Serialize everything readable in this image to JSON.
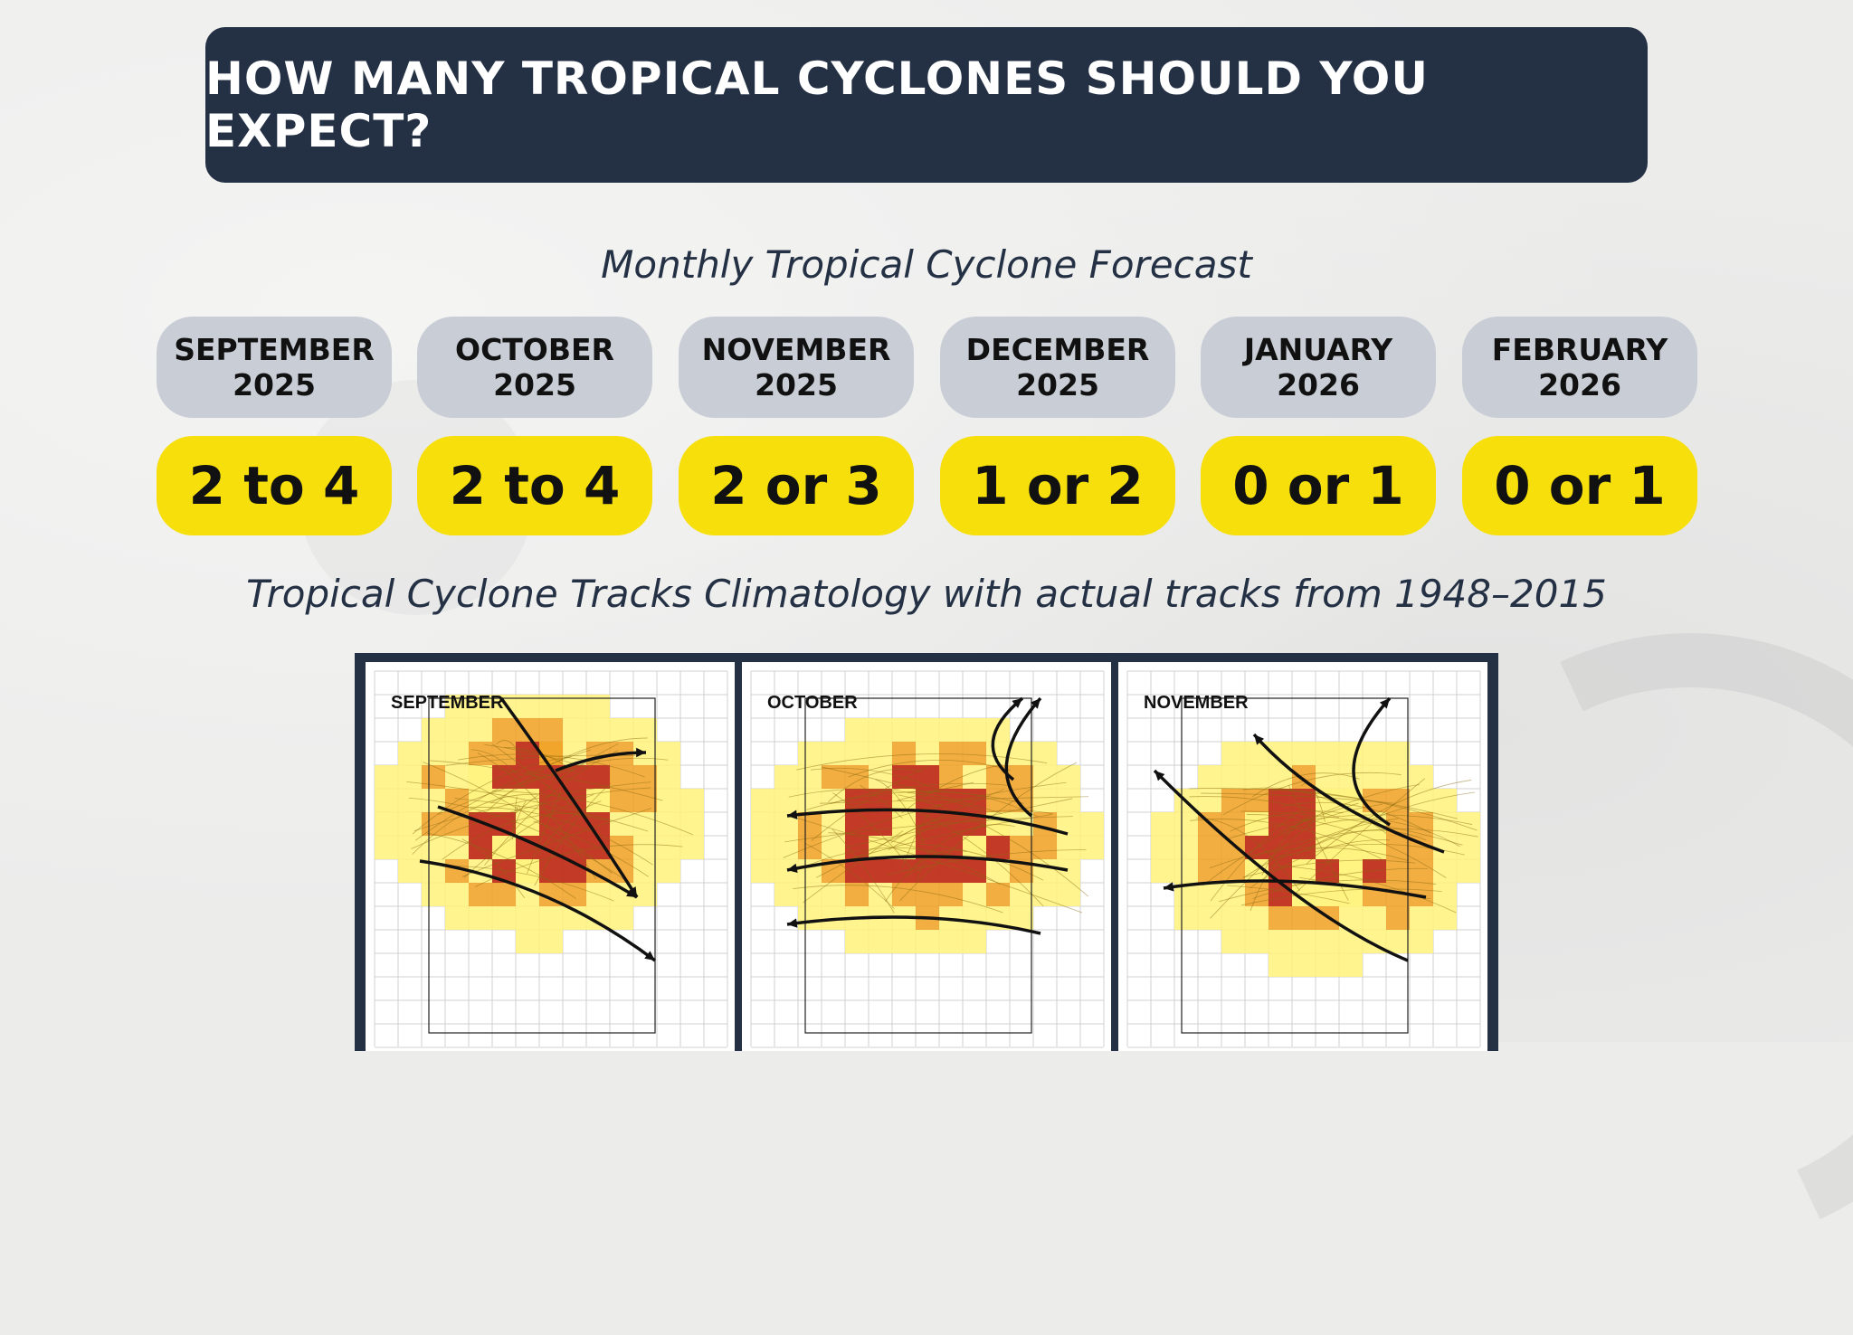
{
  "header": {
    "title": "HOW MANY TROPICAL CYCLONES SHOULD YOU EXPECT?"
  },
  "forecast": {
    "subtitle": "Monthly Tropical Cyclone Forecast",
    "months": [
      {
        "month": "SEPTEMBER",
        "year": "2025",
        "value": "2 to 4"
      },
      {
        "month": "OCTOBER",
        "year": "2025",
        "value": "2 to 4"
      },
      {
        "month": "NOVEMBER",
        "year": "2025",
        "value": "2 or 3"
      },
      {
        "month": "DECEMBER",
        "year": "2025",
        "value": "1 or 2"
      },
      {
        "month": "JANUARY",
        "year": "2026",
        "value": "0 or 1"
      },
      {
        "month": "FEBRUARY",
        "year": "2026",
        "value": "0 or 1"
      }
    ]
  },
  "tracks": {
    "subtitle": "Tropical Cyclone Tracks Climatology with actual tracks from 1948–2015",
    "panels": [
      {
        "label": "SEPTEMBER"
      },
      {
        "label": "OCTOBER"
      },
      {
        "label": "NOVEMBER"
      }
    ]
  },
  "colors": {
    "banner": "#243044",
    "month_pill": "#c9ced6",
    "value_pill": "#f7df0c",
    "heat_low": "#fff27a",
    "heat_mid": "#f0a020",
    "heat_high": "#c0301a"
  }
}
